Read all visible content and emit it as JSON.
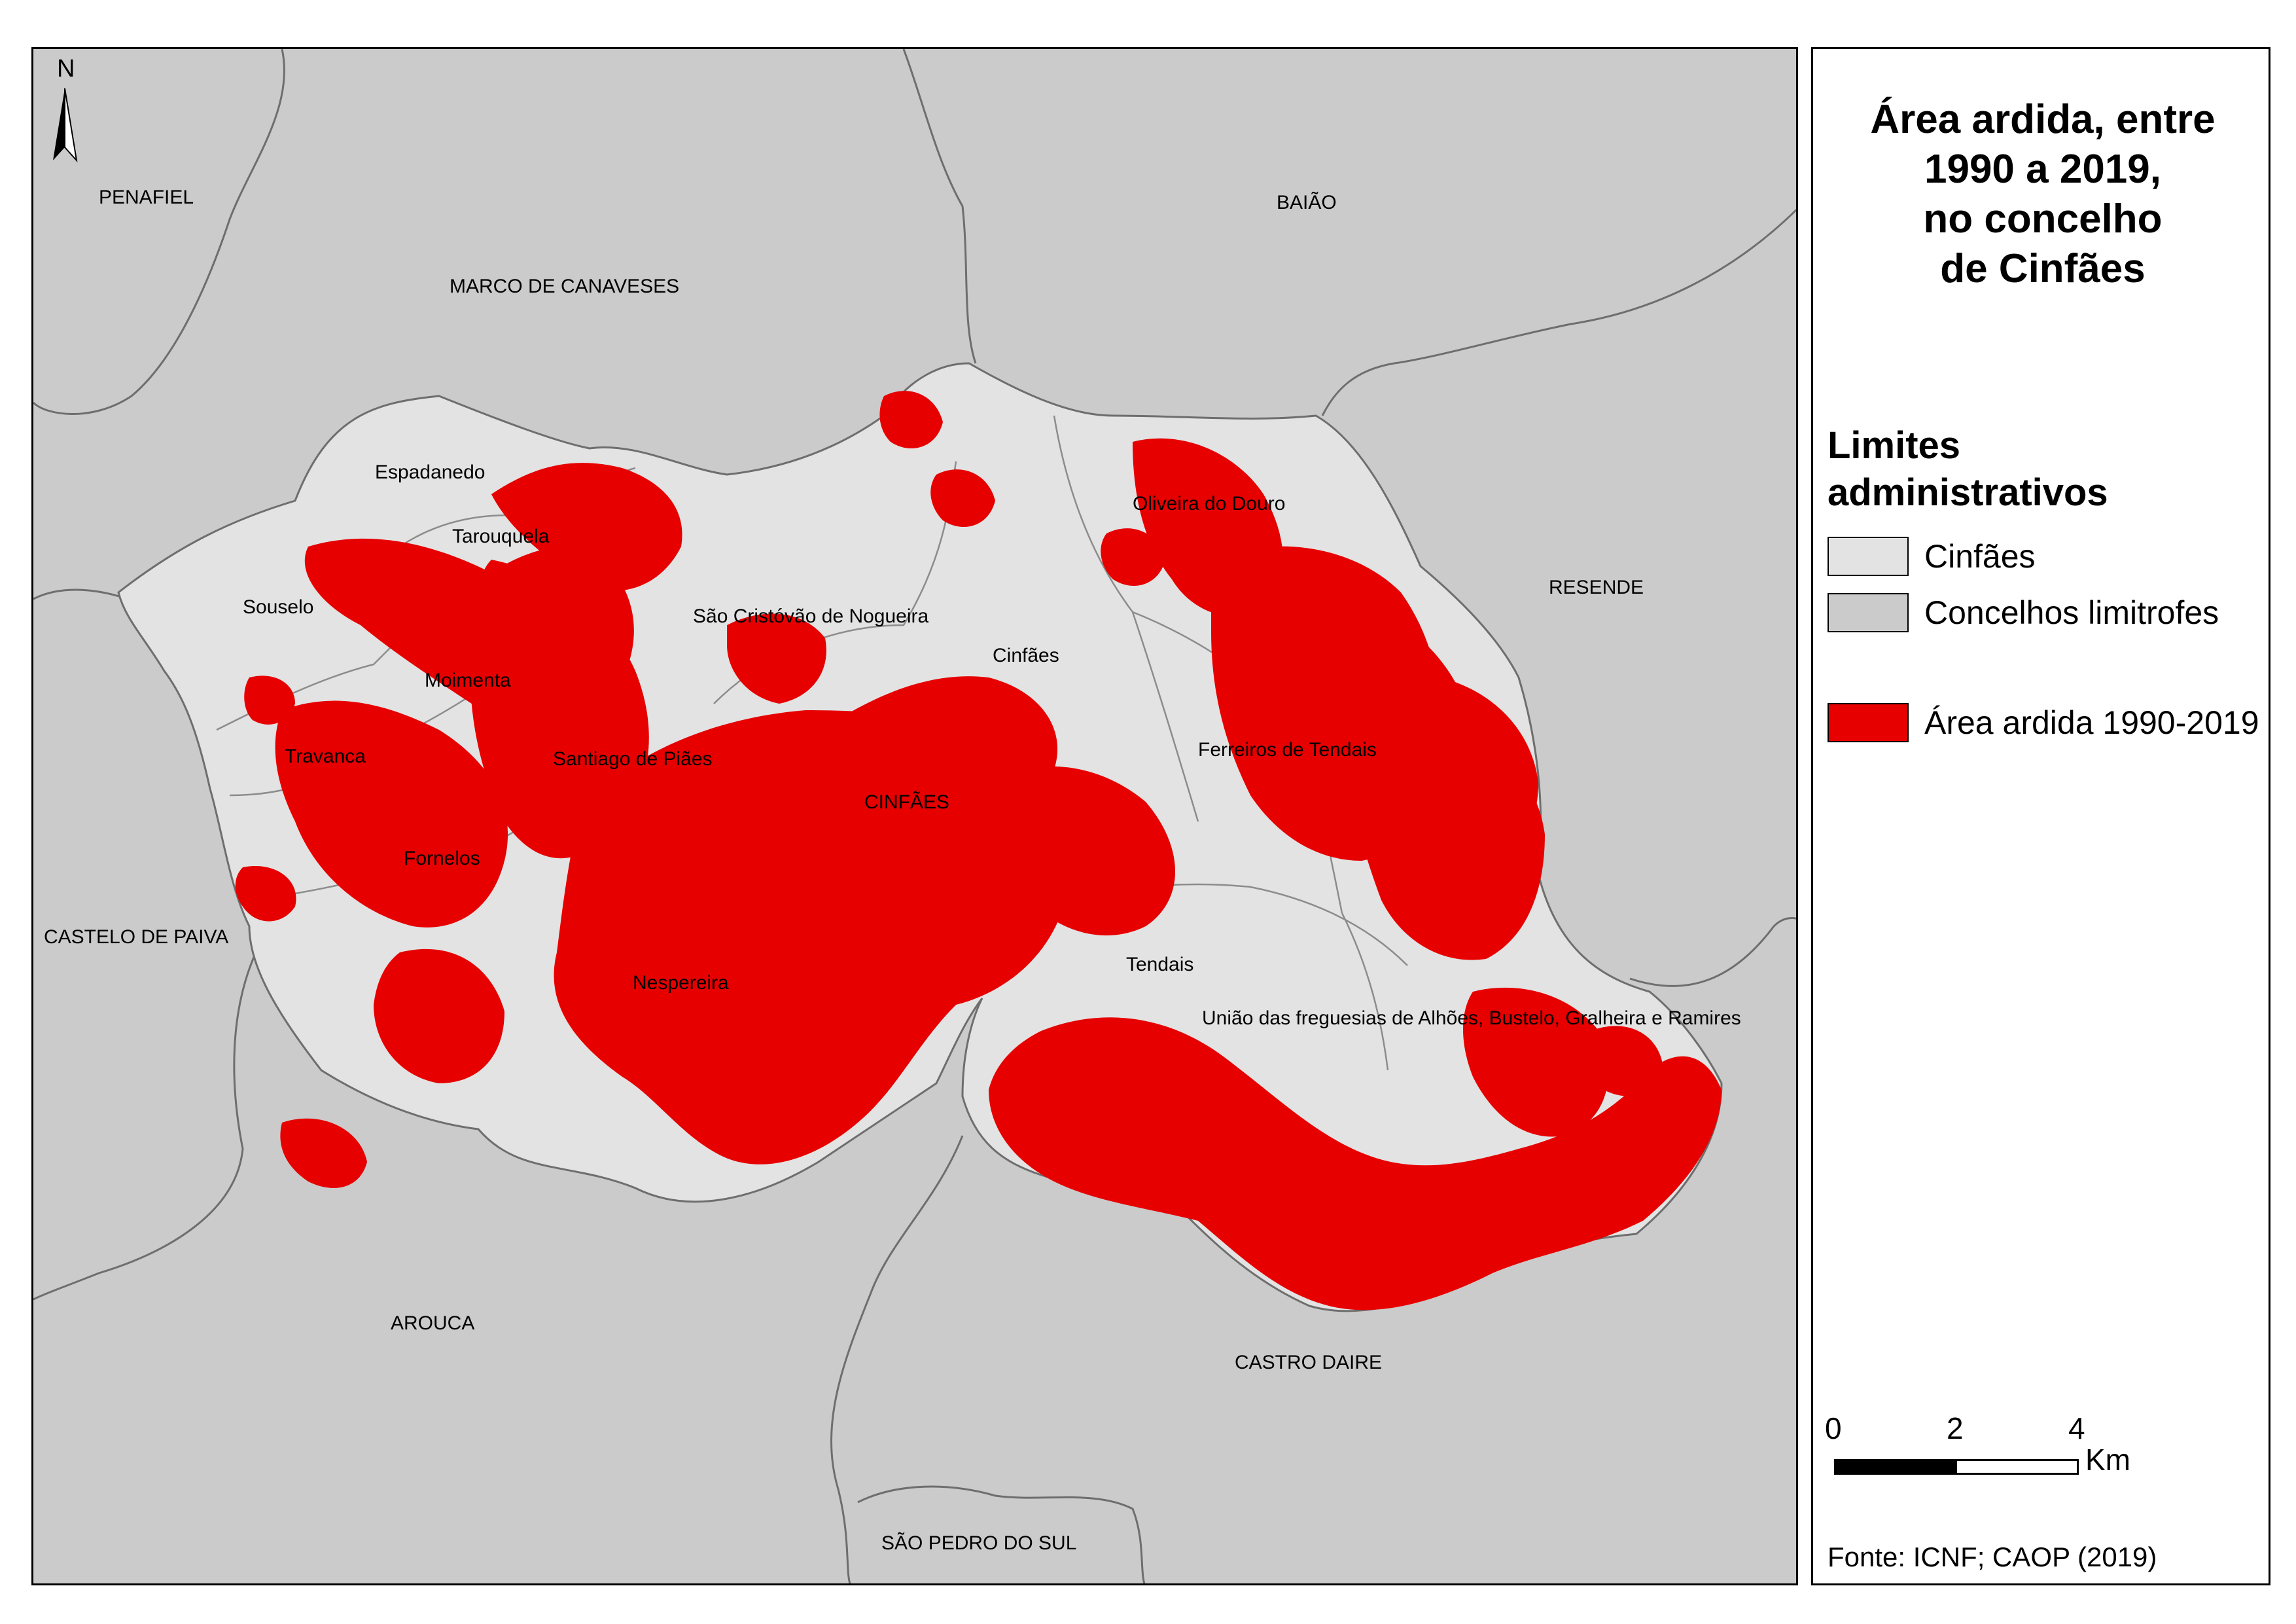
{
  "map": {
    "north_arrow": "N",
    "neighbor_labels": [
      "PENAFIEL",
      "MARCO DE CANAVESES",
      "BAIÃO",
      "RESENDE",
      "CASTELO DE PAIVA",
      "AROUCA",
      "CASTRO DAIRE",
      "SÃO PEDRO DO SUL"
    ],
    "municipality_label": "CINFÃES",
    "parish_labels": [
      "Espadanedo",
      "Tarouquela",
      "Souselo",
      "Moimenta",
      "Travanca",
      "Fornelos",
      "Santiago de Piães",
      "São Cristóvão de Nogueira",
      "Cinfães",
      "Oliveira do Douro",
      "Ferreiros de Tendais",
      "Tendais",
      "Nespereira",
      "União das freguesias de Alhões, Bustelo, Gralheira e Ramires"
    ],
    "colors": {
      "cinfaes_fill": "#e3e3e3",
      "neighbor_fill": "#cbcbcb",
      "burned_fill": "#e60000",
      "boundary": "#6e6e6e"
    }
  },
  "legend": {
    "title": "Área ardida, entre\n1990 a 2019,\nno concelho\nde Cinfães",
    "admin_heading": "Limites\nadministrativos",
    "items": [
      {
        "label": "Cinfães",
        "color": "#e3e3e3"
      },
      {
        "label": "Concelhos limitrofes",
        "color": "#cbcbcb"
      },
      {
        "label": "Área ardida 1990-2019",
        "color": "#e60000"
      }
    ],
    "scale": {
      "ticks": [
        "0",
        "2",
        "4"
      ],
      "unit": "Km"
    },
    "source": "Fonte: ICNF; CAOP (2019)"
  }
}
